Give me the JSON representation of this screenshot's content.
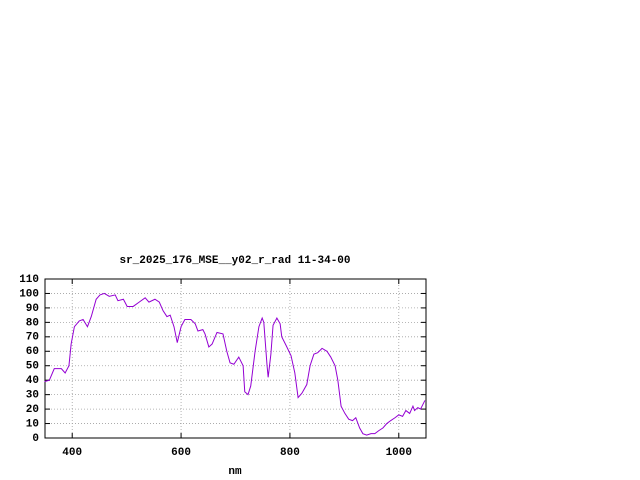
{
  "chart_data": {
    "type": "line",
    "title": "sr_2025_176_MSE__y02_r_rad 11-34-00",
    "x_label": "nm",
    "x": [
      349,
      358,
      367,
      380,
      387,
      394,
      398,
      404,
      413,
      420,
      428,
      435,
      444,
      451,
      459,
      468,
      479,
      484,
      494,
      501,
      512,
      523,
      534,
      541,
      552,
      560,
      567,
      574,
      580,
      587,
      593,
      600,
      607,
      618,
      626,
      631,
      640,
      644,
      651,
      657,
      666,
      677,
      684,
      690,
      697,
      706,
      714,
      717,
      723,
      728,
      736,
      743,
      749,
      752,
      758,
      760,
      765,
      769,
      776,
      782,
      785,
      793,
      802,
      809,
      815,
      822,
      831,
      837,
      844,
      851,
      859,
      868,
      875,
      883,
      888,
      894,
      901,
      908,
      915,
      921,
      928,
      934,
      941,
      949,
      956,
      963,
      971,
      978,
      985,
      993,
      1000,
      1007,
      1013,
      1020,
      1026,
      1029,
      1035,
      1040,
      1048
    ],
    "values": [
      39,
      40,
      48,
      48,
      45,
      50,
      65,
      77,
      81,
      82,
      77,
      84,
      96,
      99,
      100,
      98,
      99,
      95,
      96,
      91,
      91,
      94,
      97,
      94,
      96,
      94,
      88,
      84,
      85,
      77,
      66,
      77,
      82,
      82,
      79,
      74,
      75,
      72,
      63,
      65,
      73,
      72,
      60,
      52,
      51,
      56,
      50,
      32,
      30,
      36,
      60,
      77,
      83,
      80,
      50,
      42,
      58,
      78,
      83,
      79,
      70,
      64,
      57,
      45,
      28,
      31,
      37,
      50,
      58,
      59,
      62,
      60,
      56,
      50,
      40,
      22,
      17,
      13,
      12,
      14,
      7,
      3,
      2,
      3,
      3,
      5,
      7,
      10,
      12,
      14,
      16,
      15,
      19,
      17,
      22,
      19,
      21,
      20,
      26
    ],
    "color": "#9400d3",
    "xlim": [
      350,
      1050
    ],
    "xticks": [
      400,
      600,
      800,
      1000
    ],
    "ylim": [
      0,
      110
    ],
    "yticks": [
      0,
      10,
      20,
      30,
      40,
      50,
      60,
      70,
      80,
      90,
      100,
      110
    ],
    "grid": true
  }
}
